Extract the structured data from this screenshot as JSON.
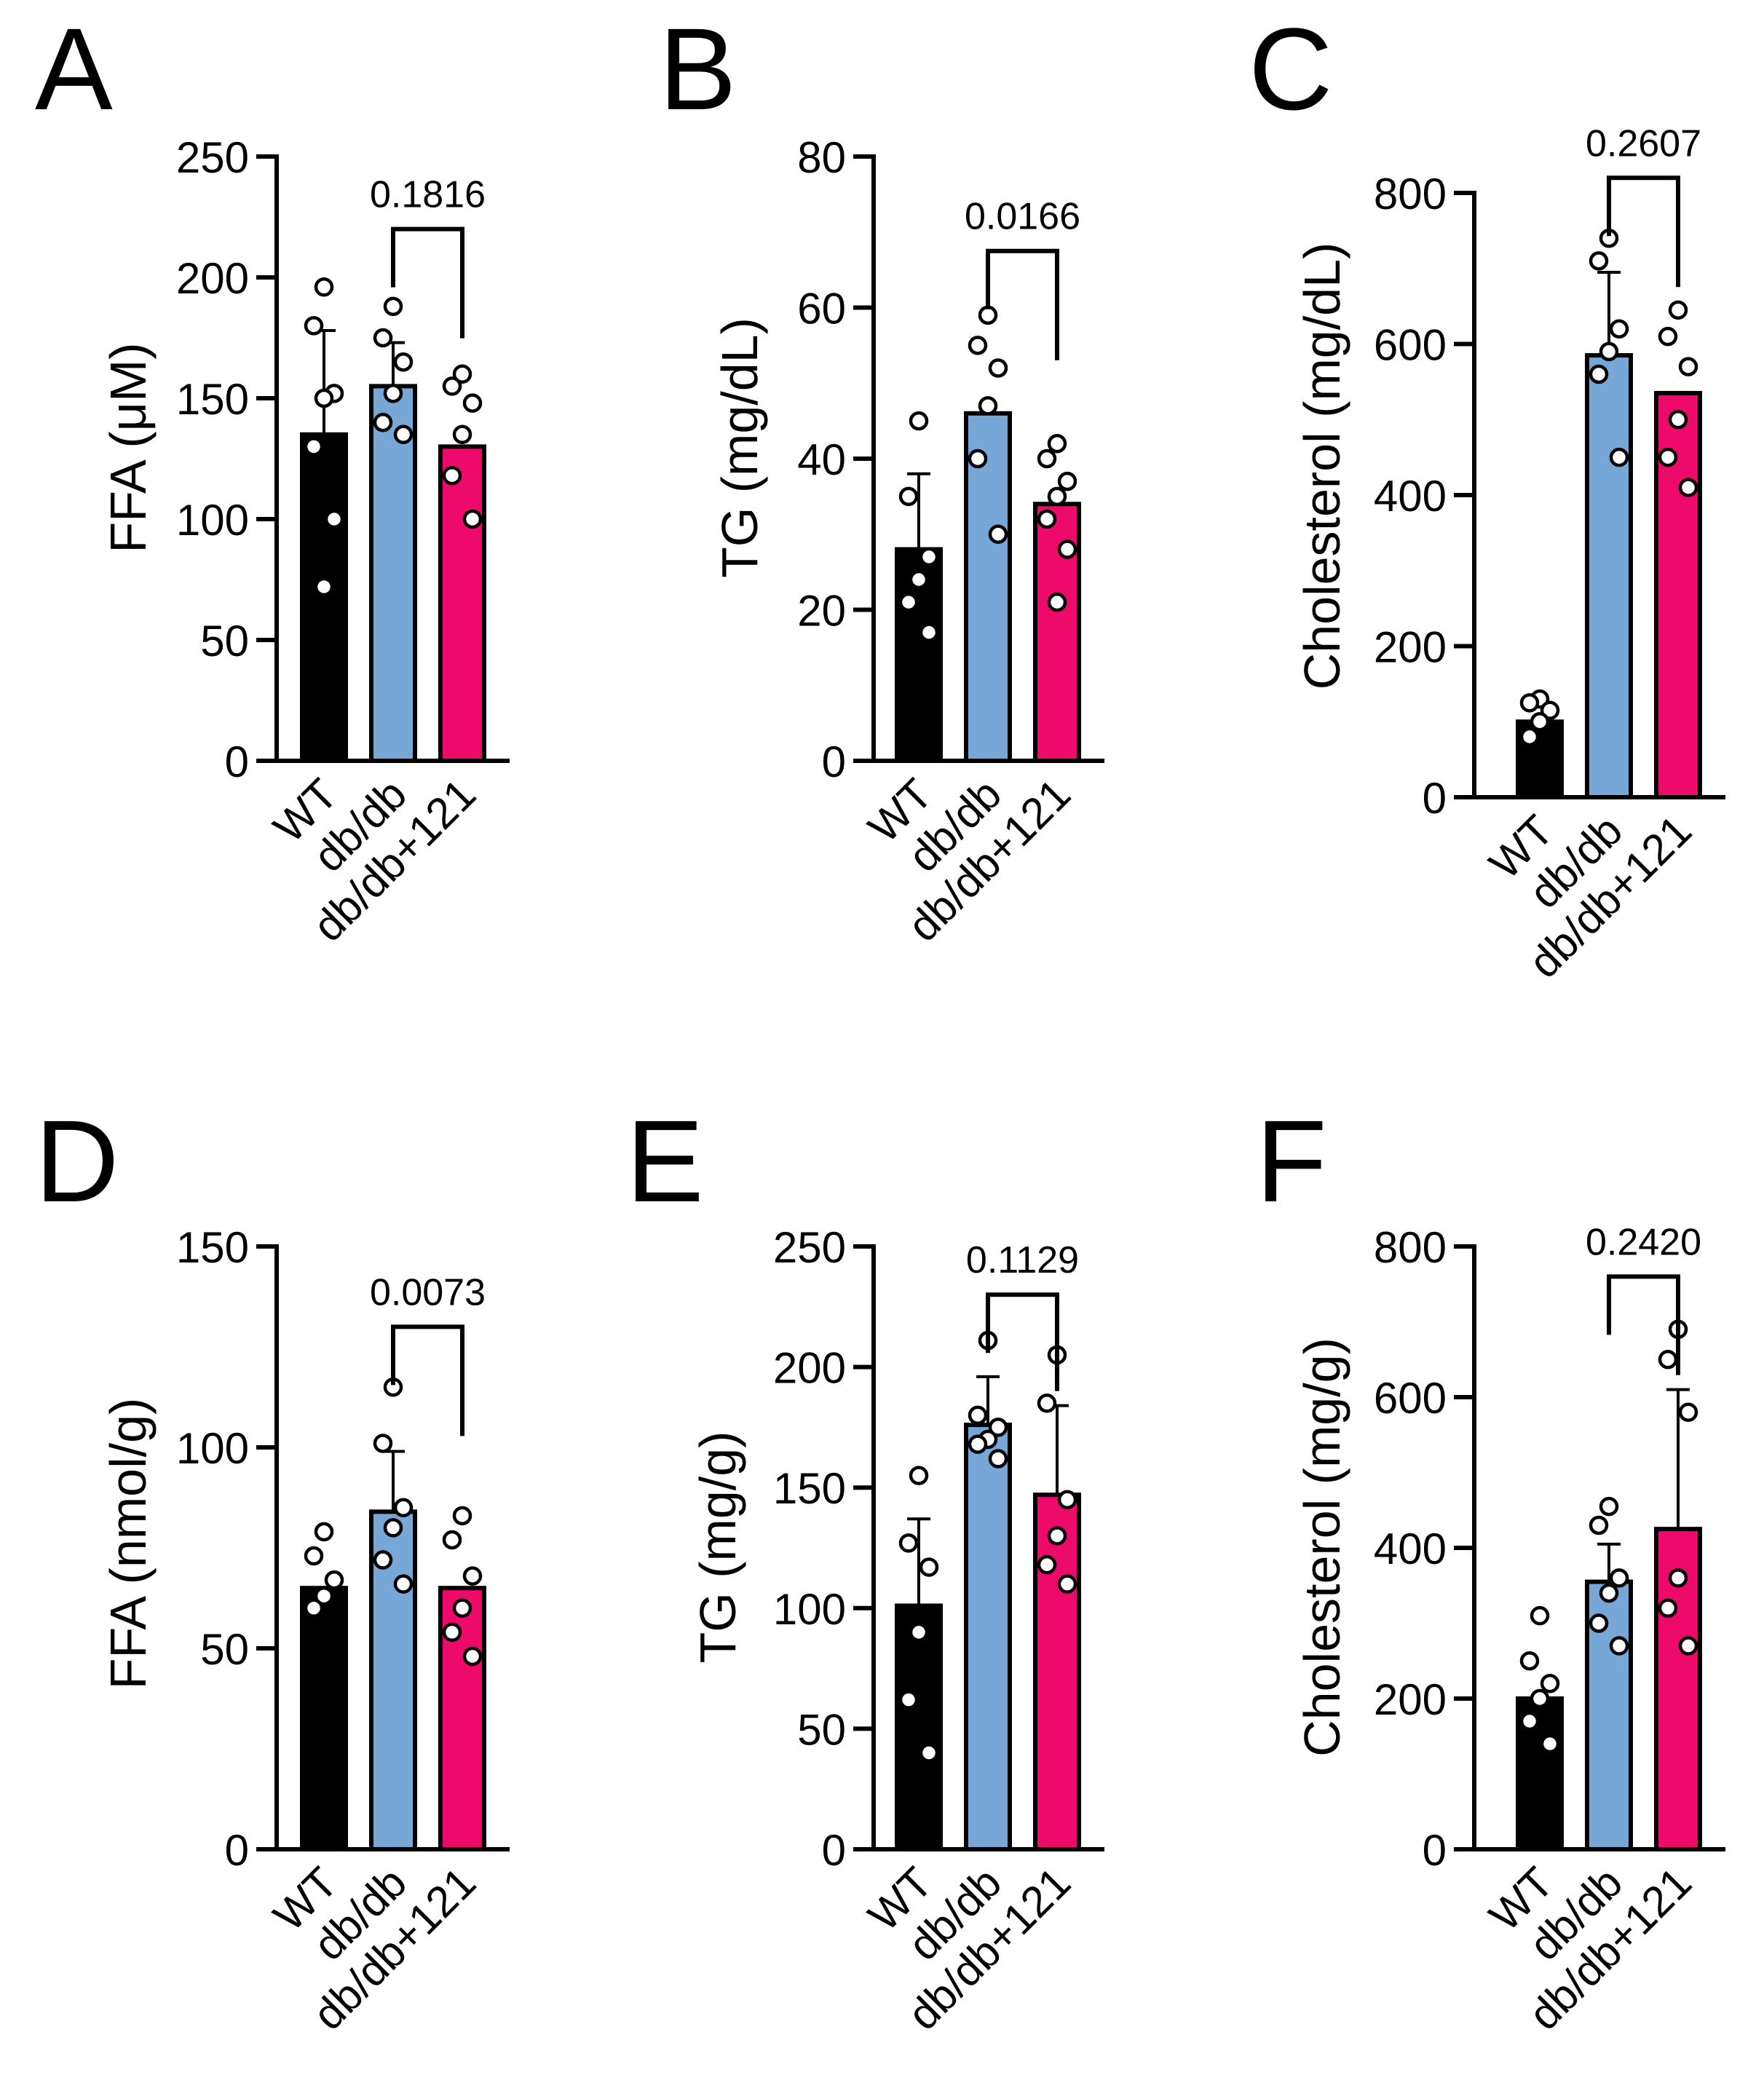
{
  "figure": {
    "background": "#ffffff"
  },
  "colors": {
    "WT": "#000000",
    "db/db": "#76a7d6",
    "db/db+121": "#ee0a6a",
    "axis": "#000000",
    "point_fill": "#ffffff"
  },
  "chart_data": [
    {
      "panel": "A",
      "type": "bar",
      "ylabel": "FFA (μM)",
      "categories": [
        "WT",
        "db/db",
        "db/db+121"
      ],
      "values": [
        135,
        155,
        130
      ],
      "errors": [
        43,
        18,
        0
      ],
      "ylim": [
        0,
        250
      ],
      "yticks": [
        0,
        50,
        100,
        150,
        200,
        250
      ],
      "points": [
        [
          196,
          180,
          152,
          150,
          130,
          100,
          72
        ],
        [
          188,
          175,
          165,
          152,
          140,
          135
        ],
        [
          160,
          155,
          148,
          135,
          118,
          100
        ]
      ],
      "comparison": {
        "from": 1,
        "to": 2,
        "label": "0.1816",
        "y": 220
      }
    },
    {
      "panel": "B",
      "type": "bar",
      "ylabel": "TG (mg/dL)",
      "categories": [
        "WT",
        "db/db",
        "db/db+121"
      ],
      "values": [
        28,
        46,
        34
      ],
      "errors": [
        10,
        0,
        0
      ],
      "ylim": [
        0,
        80
      ],
      "yticks": [
        0,
        20,
        40,
        60,
        80
      ],
      "points": [
        [
          45,
          35,
          27,
          24,
          21,
          17
        ],
        [
          59,
          55,
          52,
          47,
          40,
          30
        ],
        [
          42,
          40,
          37,
          35,
          32,
          28,
          21
        ]
      ],
      "comparison": {
        "from": 1,
        "to": 2,
        "label": "0.0166",
        "y": 67.5
      }
    },
    {
      "panel": "C",
      "type": "bar",
      "ylabel": "Cholesterol (mg/dL)",
      "categories": [
        "WT",
        "db/db",
        "db/db+121"
      ],
      "values": [
        100,
        585,
        535
      ],
      "errors": [
        0,
        110,
        0
      ],
      "ylim": [
        0,
        800
      ],
      "yticks": [
        0,
        200,
        400,
        600,
        800
      ],
      "points": [
        [
          130,
          125,
          115,
          100,
          80
        ],
        [
          740,
          710,
          620,
          590,
          560,
          450
        ],
        [
          645,
          610,
          570,
          500,
          450,
          410
        ]
      ],
      "comparison": {
        "from": 1,
        "to": 2,
        "label": "0.2607",
        "y": 820
      }
    },
    {
      "panel": "D",
      "type": "bar",
      "ylabel": "FFA (nmol/g)",
      "categories": [
        "WT",
        "db/db",
        "db/db+121"
      ],
      "values": [
        65,
        84,
        65
      ],
      "errors": [
        0,
        15,
        0
      ],
      "ylim": [
        0,
        150
      ],
      "yticks": [
        0,
        50,
        100,
        150
      ],
      "points": [
        [
          79,
          73,
          67,
          63,
          60
        ],
        [
          115,
          101,
          85,
          80,
          72,
          66
        ],
        [
          83,
          77,
          68,
          60,
          54,
          48
        ]
      ],
      "comparison": {
        "from": 1,
        "to": 2,
        "label": "0.0073",
        "y": 130
      }
    },
    {
      "panel": "E",
      "type": "bar",
      "ylabel": "TG (mg/g)",
      "categories": [
        "WT",
        "db/db",
        "db/db+121"
      ],
      "values": [
        101,
        176,
        147
      ],
      "errors": [
        36,
        20,
        37
      ],
      "ylim": [
        0,
        250
      ],
      "yticks": [
        0,
        50,
        100,
        150,
        200,
        250
      ],
      "points": [
        [
          155,
          127,
          117,
          90,
          62,
          40
        ],
        [
          211,
          180,
          175,
          170,
          168,
          162
        ],
        [
          205,
          185,
          145,
          130,
          118,
          110
        ]
      ],
      "comparison": {
        "from": 1,
        "to": 2,
        "label": "0.1129",
        "y": 230
      }
    },
    {
      "panel": "F",
      "type": "bar",
      "ylabel": "Cholesterol (mg/g)",
      "categories": [
        "WT",
        "db/db",
        "db/db+121"
      ],
      "values": [
        200,
        355,
        425
      ],
      "errors": [
        0,
        50,
        185
      ],
      "ylim": [
        0,
        800
      ],
      "yticks": [
        0,
        200,
        400,
        600,
        800
      ],
      "points": [
        [
          310,
          250,
          220,
          200,
          170,
          140
        ],
        [
          455,
          430,
          360,
          340,
          300,
          270
        ],
        [
          690,
          650,
          580,
          360,
          320,
          270
        ]
      ],
      "comparison": {
        "from": 1,
        "to": 2,
        "label": "0.2420",
        "y": 760
      }
    }
  ]
}
